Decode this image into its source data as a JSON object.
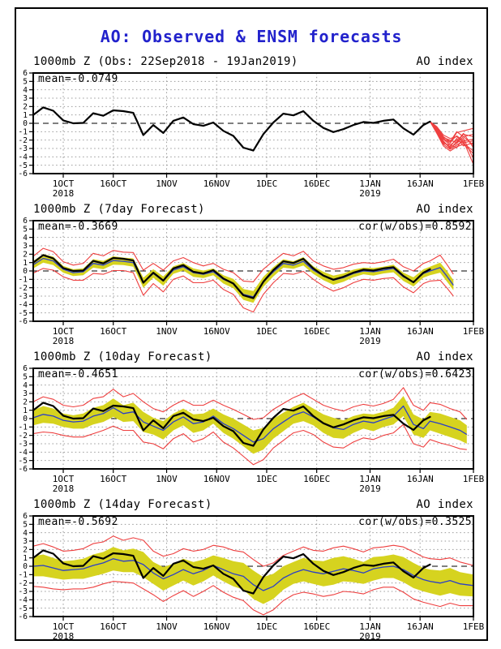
{
  "title": "AO: Observed & ENSM forecasts",
  "colors": {
    "title_blue": "#2222cc",
    "observed_black": "#000000",
    "ensemble_red": "#ee3f3f",
    "band_yellow": "#d6d31f",
    "mean_blue": "#2b3fc8",
    "grid_gray": "#9a9a9a",
    "frame_black": "#000000"
  },
  "axis": {
    "y_min": -6,
    "y_max": 6,
    "y_ticks": [
      6,
      5,
      4,
      3,
      2,
      1,
      0,
      -1,
      -2,
      -3,
      -4,
      -5,
      -6
    ],
    "x_max_day": 132,
    "x_ticks": [
      {
        "label": "1OCT",
        "day": 9,
        "year": "2018"
      },
      {
        "label": "16OCT",
        "day": 24
      },
      {
        "label": "1NOV",
        "day": 40
      },
      {
        "label": "16NOV",
        "day": 55
      },
      {
        "label": "1DEC",
        "day": 70
      },
      {
        "label": "16DEC",
        "day": 85
      },
      {
        "label": "1JAN",
        "day": 101,
        "year": "2019"
      },
      {
        "label": "16JAN",
        "day": 116
      },
      {
        "label": "1FEB",
        "day": 132
      }
    ]
  },
  "chart_data": {
    "type": "line",
    "x_unit": "days since 22Sep2018",
    "ylim": [
      -6,
      6
    ],
    "observed": {
      "days": [
        0,
        3,
        6,
        9,
        12,
        15,
        18,
        21,
        24,
        27,
        30,
        33,
        36,
        39,
        42,
        45,
        48,
        51,
        54,
        57,
        60,
        63,
        66,
        69,
        72,
        75,
        78,
        81,
        84,
        87,
        90,
        93,
        96,
        99,
        102,
        105,
        108,
        111,
        114,
        117,
        119
      ],
      "values": [
        1.0,
        1.9,
        1.5,
        0.35,
        0.0,
        0.05,
        1.2,
        0.9,
        1.55,
        1.45,
        1.25,
        -1.4,
        -0.2,
        -1.15,
        0.3,
        0.7,
        -0.1,
        -0.3,
        0.1,
        -0.9,
        -1.5,
        -2.9,
        -3.25,
        -1.3,
        0.1,
        1.15,
        0.95,
        1.45,
        0.3,
        -0.55,
        -1.05,
        -0.7,
        -0.2,
        0.15,
        0.05,
        0.3,
        0.45,
        -0.6,
        -1.35,
        -0.2,
        0.2
      ]
    },
    "ensemble_members": {
      "days": [
        119,
        121,
        123,
        125,
        127,
        129,
        132
      ],
      "values": [
        [
          0.2,
          -0.6,
          -1.9,
          -2.6,
          -2.0,
          -2.4,
          -3.3
        ],
        [
          0.2,
          -0.9,
          -2.2,
          -2.9,
          -2.4,
          -1.6,
          -2.6
        ],
        [
          0.2,
          -0.5,
          -1.6,
          -2.2,
          -1.5,
          -2.1,
          -4.9
        ],
        [
          0.2,
          -1.1,
          -2.5,
          -3.1,
          -2.6,
          -2.1,
          -1.9
        ],
        [
          0.2,
          -0.7,
          -1.8,
          -2.4,
          -1.1,
          -0.9,
          -0.6
        ],
        [
          0.2,
          -1.2,
          -2.7,
          -3.3,
          -2.8,
          -2.5,
          -3.6
        ],
        [
          0.2,
          -0.6,
          -1.7,
          -2.0,
          -2.3,
          -1.3,
          -1.6
        ],
        [
          0.2,
          -1.0,
          -2.3,
          -2.8,
          -1.8,
          -2.7,
          -2.3
        ],
        [
          0.2,
          -0.8,
          -2.1,
          -3.0,
          -2.2,
          -1.2,
          -2.9
        ],
        [
          0.2,
          -0.4,
          -1.4,
          -1.8,
          -1.6,
          -2.3,
          -2.1
        ],
        [
          0.2,
          -1.1,
          -2.4,
          -2.6,
          -2.9,
          -1.8,
          -4.2
        ],
        [
          0.2,
          -0.7,
          -1.9,
          -2.2,
          -1.0,
          -1.6,
          -1.3
        ]
      ]
    },
    "panels": [
      {
        "id": "obs",
        "header_left": "1000mb Z (Obs: 22Sep2018 - 19Jan2019)",
        "header_right": "AO index",
        "mean_label": "mean=-0.0749"
      },
      {
        "id": "f7",
        "header_left": "1000mb Z (7day Forecast)",
        "header_right": "AO index",
        "mean_label": "mean=-0.3669",
        "cor_label": "cor(w/obs)=0.8592",
        "forecast": {
          "days": [
            0,
            3,
            6,
            9,
            12,
            15,
            18,
            21,
            24,
            27,
            30,
            33,
            36,
            39,
            42,
            45,
            48,
            51,
            54,
            57,
            60,
            63,
            66,
            69,
            72,
            75,
            78,
            81,
            84,
            87,
            90,
            93,
            96,
            99,
            102,
            105,
            108,
            111,
            114,
            117,
            119,
            122,
            124,
            126
          ],
          "mean": [
            0.75,
            1.5,
            1.2,
            0.2,
            -0.2,
            -0.1,
            0.9,
            0.7,
            1.25,
            1.15,
            1.0,
            -1.4,
            -0.3,
            -1.2,
            0.1,
            0.5,
            -0.2,
            -0.4,
            -0.1,
            -1.0,
            -1.5,
            -2.8,
            -3.1,
            -1.3,
            -0.1,
            0.9,
            0.7,
            1.15,
            0.1,
            -0.6,
            -1.1,
            -0.8,
            -0.3,
            0.0,
            -0.1,
            0.1,
            0.3,
            -0.7,
            -1.3,
            -0.3,
            0.0,
            0.4,
            -0.6,
            -1.7
          ],
          "band_hw": [
            0.45,
            0.5,
            0.5,
            0.4,
            0.4,
            0.4,
            0.5,
            0.5,
            0.5,
            0.45,
            0.5,
            0.6,
            0.5,
            0.55,
            0.45,
            0.45,
            0.5,
            0.45,
            0.4,
            0.5,
            0.55,
            0.65,
            0.7,
            0.6,
            0.55,
            0.5,
            0.45,
            0.5,
            0.45,
            0.5,
            0.55,
            0.5,
            0.45,
            0.4,
            0.45,
            0.4,
            0.45,
            0.5,
            0.55,
            0.5,
            0.5,
            0.6,
            0.65,
            0.6
          ],
          "env_hw": [
            1.0,
            1.2,
            1.1,
            0.9,
            0.9,
            1.0,
            1.2,
            1.1,
            1.2,
            1.1,
            1.2,
            1.5,
            1.2,
            1.3,
            1.1,
            1.1,
            1.2,
            1.0,
            1.0,
            1.2,
            1.3,
            1.6,
            1.8,
            1.5,
            1.3,
            1.2,
            1.1,
            1.2,
            1.1,
            1.2,
            1.3,
            1.2,
            1.1,
            1.0,
            1.0,
            1.0,
            1.1,
            1.2,
            1.3,
            1.2,
            1.2,
            1.5,
            1.4,
            1.3
          ]
        }
      },
      {
        "id": "f10",
        "header_left": "1000mb Z (10day Forecast)",
        "header_right": "AO index",
        "mean_label": "mean=-0.4651",
        "cor_label": "cor(w/obs)=0.6423",
        "forecast": {
          "days": [
            0,
            3,
            6,
            9,
            12,
            15,
            18,
            21,
            24,
            27,
            30,
            33,
            36,
            39,
            42,
            45,
            48,
            51,
            54,
            57,
            60,
            63,
            66,
            69,
            72,
            75,
            78,
            81,
            84,
            87,
            90,
            93,
            96,
            99,
            102,
            105,
            108,
            111,
            114,
            117,
            119,
            122,
            125,
            128,
            130
          ],
          "mean": [
            0.1,
            0.5,
            0.3,
            -0.2,
            -0.4,
            -0.3,
            0.3,
            0.6,
            1.3,
            0.6,
            0.8,
            -0.4,
            -0.9,
            -1.4,
            -0.4,
            0.2,
            -0.6,
            -0.4,
            0.3,
            -0.6,
            -1.2,
            -2.0,
            -2.8,
            -2.4,
            -1.2,
            -0.4,
            0.4,
            0.8,
            0.2,
            -0.6,
            -1.1,
            -1.3,
            -0.7,
            -0.3,
            -0.5,
            -0.1,
            0.3,
            1.5,
            -0.7,
            -1.2,
            -0.3,
            -0.6,
            -1.0,
            -1.4,
            -1.9
          ],
          "band_hw": [
            0.9,
            1.0,
            0.9,
            0.8,
            0.8,
            0.9,
            1.0,
            1.0,
            1.1,
            1.0,
            1.1,
            1.2,
            1.0,
            1.1,
            1.0,
            1.0,
            1.1,
            1.0,
            0.9,
            1.1,
            1.2,
            1.3,
            1.4,
            1.3,
            1.2,
            1.1,
            1.0,
            1.1,
            1.0,
            1.1,
            1.2,
            1.1,
            1.0,
            0.9,
            1.0,
            0.9,
            1.0,
            1.2,
            1.2,
            1.1,
            1.1,
            1.2,
            1.2,
            1.2,
            1.1
          ],
          "env_hw": [
            1.9,
            2.1,
            2.0,
            1.8,
            1.8,
            1.9,
            2.1,
            2.0,
            2.2,
            2.0,
            2.2,
            2.4,
            2.1,
            2.2,
            2.0,
            2.0,
            2.2,
            2.0,
            1.9,
            2.2,
            2.3,
            2.5,
            2.7,
            2.5,
            2.3,
            2.2,
            2.1,
            2.2,
            2.1,
            2.2,
            2.3,
            2.2,
            2.1,
            2.0,
            2.0,
            1.9,
            2.0,
            2.2,
            2.3,
            2.2,
            2.2,
            2.3,
            2.2,
            2.2,
            1.8
          ]
        }
      },
      {
        "id": "f14",
        "header_left": "1000mb Z (14day Forecast)",
        "header_right": "AO index",
        "mean_label": "mean=-0.5692",
        "cor_label": "cor(w/obs)=0.3525",
        "forecast": {
          "days": [
            0,
            3,
            6,
            9,
            12,
            15,
            18,
            21,
            24,
            27,
            30,
            33,
            36,
            39,
            42,
            45,
            48,
            51,
            54,
            57,
            60,
            63,
            66,
            69,
            72,
            75,
            78,
            81,
            84,
            87,
            90,
            93,
            96,
            99,
            102,
            105,
            108,
            111,
            114,
            117,
            119,
            122,
            125,
            128,
            132
          ],
          "mean": [
            0.0,
            0.1,
            -0.2,
            -0.5,
            -0.4,
            -0.3,
            0.1,
            0.4,
            0.9,
            0.6,
            0.7,
            0.2,
            -0.8,
            -1.5,
            -1.0,
            -0.4,
            -0.9,
            -0.5,
            0.1,
            -0.4,
            -0.9,
            -1.2,
            -2.2,
            -2.9,
            -2.4,
            -1.4,
            -0.8,
            -0.4,
            -0.7,
            -0.9,
            -0.6,
            -0.3,
            -0.5,
            -0.8,
            -0.3,
            -0.1,
            0.0,
            -0.4,
            -1.1,
            -1.6,
            -1.8,
            -2.0,
            -1.7,
            -2.1,
            -2.3
          ],
          "band_hw": [
            1.2,
            1.3,
            1.2,
            1.1,
            1.1,
            1.2,
            1.3,
            1.3,
            1.4,
            1.3,
            1.4,
            1.5,
            1.3,
            1.4,
            1.3,
            1.3,
            1.4,
            1.3,
            1.2,
            1.4,
            1.5,
            1.6,
            1.7,
            1.6,
            1.5,
            1.4,
            1.3,
            1.4,
            1.4,
            1.5,
            1.6,
            1.5,
            1.4,
            1.3,
            1.4,
            1.3,
            1.4,
            1.5,
            1.5,
            1.4,
            1.4,
            1.5,
            1.5,
            1.4,
            1.3
          ],
          "env_hw": [
            2.4,
            2.6,
            2.5,
            2.3,
            2.3,
            2.4,
            2.6,
            2.5,
            2.7,
            2.5,
            2.7,
            2.9,
            2.6,
            2.7,
            2.5,
            2.5,
            2.7,
            2.5,
            2.4,
            2.7,
            2.8,
            2.9,
            3.0,
            2.9,
            2.8,
            2.7,
            2.6,
            2.7,
            2.6,
            2.7,
            2.8,
            2.7,
            2.6,
            2.5,
            2.5,
            2.4,
            2.5,
            2.7,
            2.8,
            2.7,
            2.7,
            2.8,
            2.7,
            2.6,
            2.4
          ]
        }
      }
    ]
  }
}
